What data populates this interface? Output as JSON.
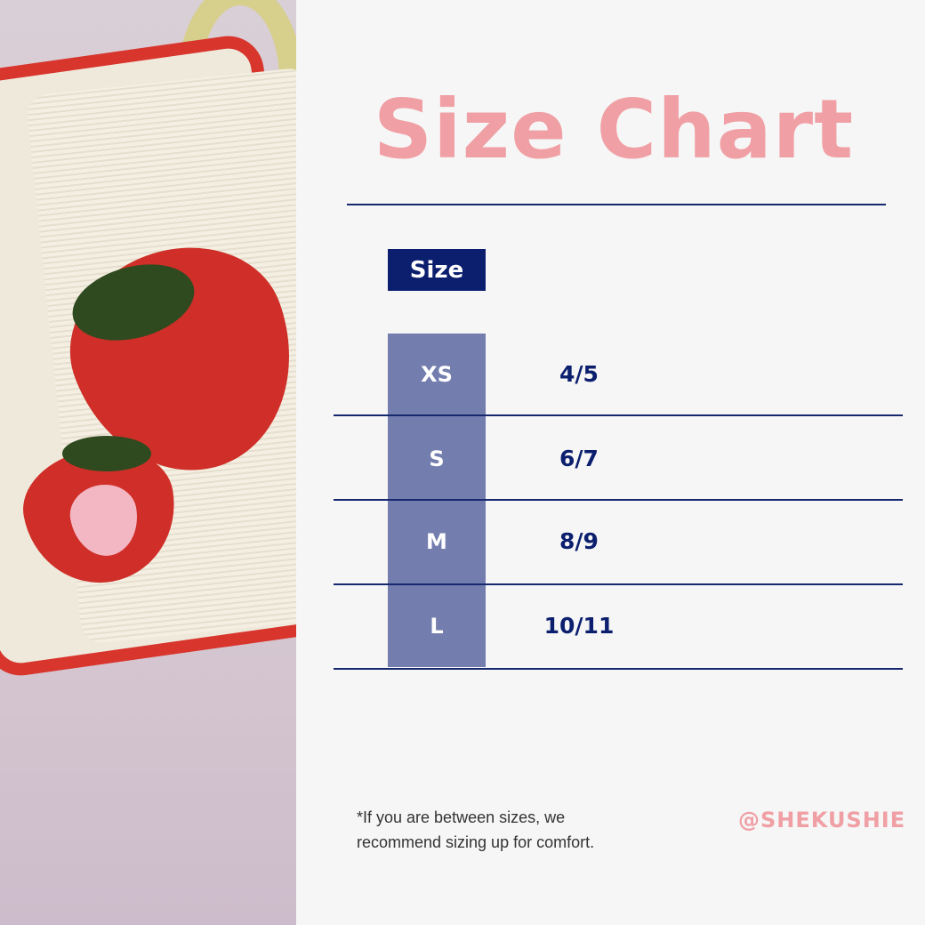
{
  "title": "Size Chart",
  "header": {
    "size_label": "Size"
  },
  "rows": [
    {
      "size": "XS",
      "value": "4/5"
    },
    {
      "size": "S",
      "value": "6/7"
    },
    {
      "size": "M",
      "value": "8/9"
    },
    {
      "size": "L",
      "value": "10/11"
    }
  ],
  "note": {
    "line1": "*If you are between sizes, we",
    "line2": "recommend sizing up for comfort."
  },
  "handle": "@SHEKUSHIE",
  "colors": {
    "title": "#f0a0a5",
    "navy": "#0c1f6e",
    "size_column": "#737eae",
    "background": "#f6f6f6"
  }
}
